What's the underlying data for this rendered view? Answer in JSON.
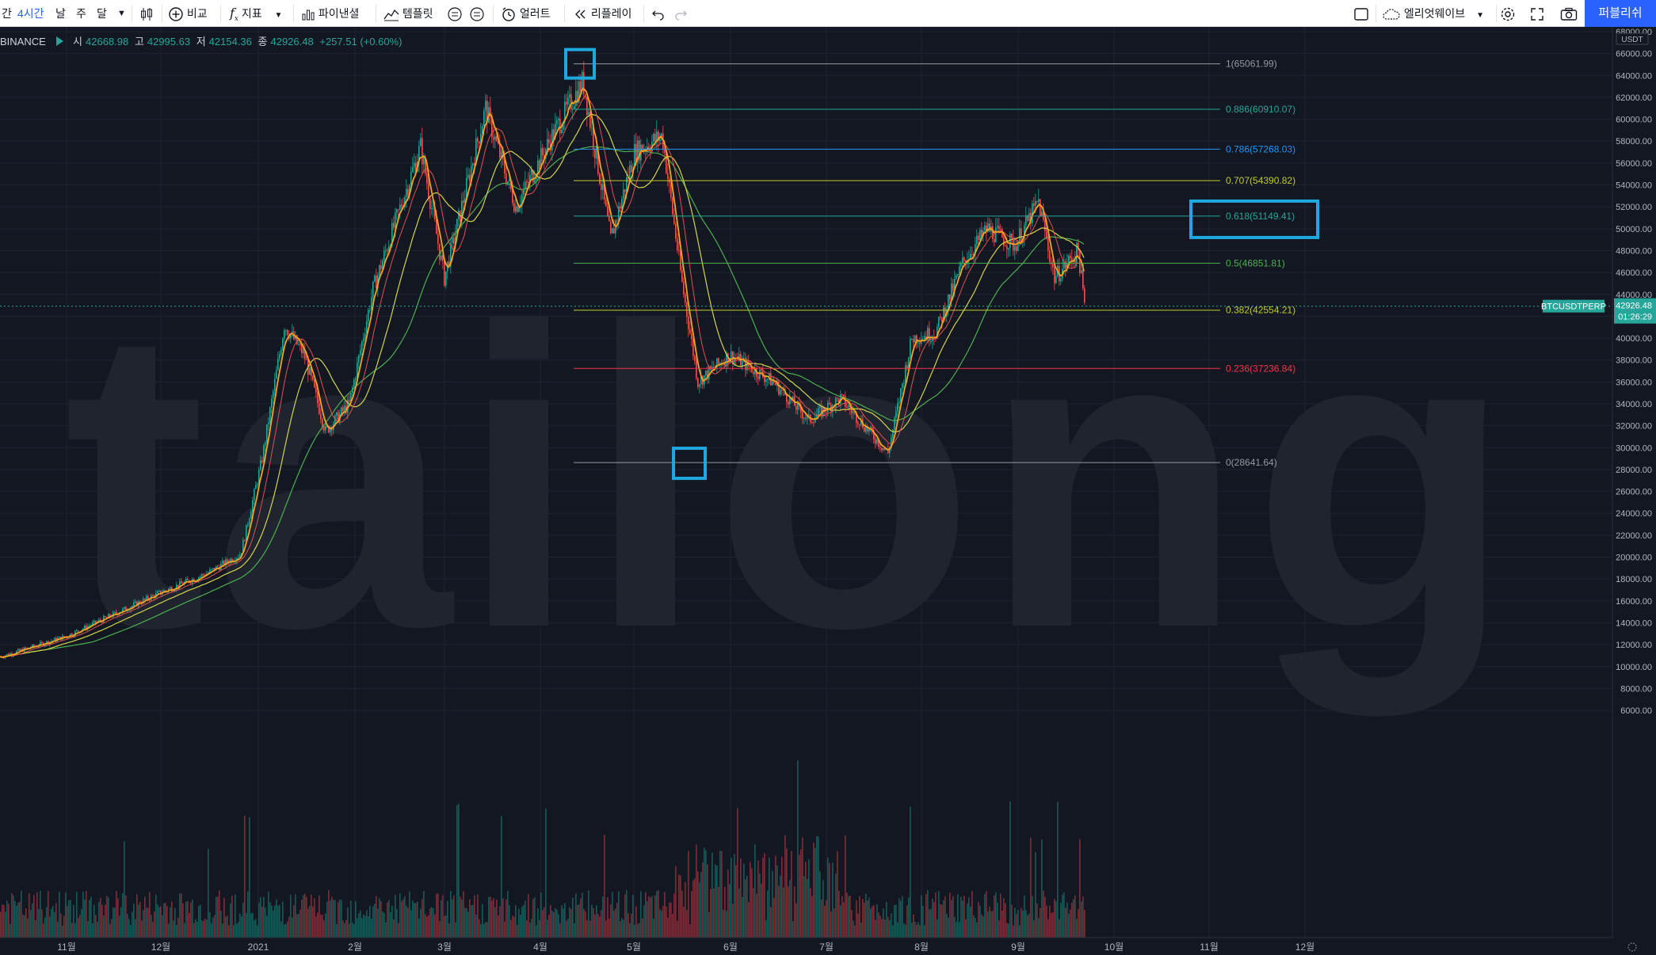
{
  "toolbar": {
    "interval_partial": "간",
    "interval_active": "4시간",
    "interval_day": "날",
    "interval_week": "주",
    "interval_month": "달",
    "compare": "비교",
    "indicators": "지표",
    "financials": "파이낸셜",
    "templates": "템플릿",
    "alert": "얼러트",
    "replay": "리플레이",
    "layout": "엘리엇웨이브",
    "publish": "퍼블리쉬"
  },
  "legend": {
    "exchange": "BINANCE",
    "open_label": "시",
    "open": "42668.98",
    "high_label": "고",
    "high": "42995.63",
    "low_label": "저",
    "low": "42154.36",
    "close_label": "종",
    "close": "42926.48",
    "change": "+257.51 (+0.60%)"
  },
  "watermark": "tailong",
  "price_axis": {
    "currency": "USDT",
    "ticks": [
      "68000.00",
      "66000.00",
      "64000.00",
      "62000.00",
      "60000.00",
      "58000.00",
      "56000.00",
      "54000.00",
      "52000.00",
      "50000.00",
      "48000.00",
      "46000.00",
      "44000.00",
      "42000.00",
      "40000.00",
      "38000.00",
      "36000.00",
      "34000.00",
      "32000.00",
      "30000.00",
      "28000.00",
      "26000.00",
      "24000.00",
      "22000.00",
      "20000.00",
      "18000.00",
      "16000.00",
      "14000.00",
      "12000.00",
      "10000.00",
      "8000.00",
      "6000.00"
    ],
    "symbol_tag": "BTCUSDTPERP",
    "last_price": "42926.48",
    "countdown": "01:26:29"
  },
  "time_axis": {
    "labels": [
      "11월",
      "12월",
      "2021",
      "2월",
      "3월",
      "4월",
      "5월",
      "6월",
      "7월",
      "8월",
      "9월",
      "10월",
      "11월",
      "12월"
    ]
  },
  "colors": {
    "up": "#26a69a",
    "down": "#ef5350",
    "highlight_box": "#1fa8e0",
    "ma_fast": "#f7a31c",
    "ma_mid": "#d4d44a",
    "ma_slow": "#4caf50"
  },
  "fib_levels": [
    {
      "label": "1(65061.99)",
      "price": 65061.99,
      "color": "#9598a1"
    },
    {
      "label": "0.886(60910.07)",
      "price": 60910.07,
      "color": "#26a69a"
    },
    {
      "label": "0.786(57268.03)",
      "price": 57268.03,
      "color": "#2196f3"
    },
    {
      "label": "0.707(54390.82)",
      "price": 54390.82,
      "color": "#c0ca33"
    },
    {
      "label": "0.618(51149.41)",
      "price": 51149.41,
      "color": "#26a69a"
    },
    {
      "label": "0.5(46851.81)",
      "price": 46851.81,
      "color": "#4caf50"
    },
    {
      "label": "0.382(42554.21)",
      "price": 42554.21,
      "color": "#c0ca33"
    },
    {
      "label": "0.236(37236.84)",
      "price": 37236.84,
      "color": "#f23645"
    },
    {
      "label": "0(28641.64)",
      "price": 28641.64,
      "color": "#9598a1"
    }
  ],
  "chart_data": {
    "type": "line",
    "series": [
      {
        "name": "BTCUSDTPERP",
        "x": [
          "2020-10-20",
          "2020-11-01",
          "2020-11-15",
          "2020-12-01",
          "2020-12-15",
          "2021-01-01",
          "2021-01-08",
          "2021-01-20",
          "2021-01-28",
          "2021-02-10",
          "2021-02-21",
          "2021-02-28",
          "2021-03-13",
          "2021-03-25",
          "2021-04-01",
          "2021-04-14",
          "2021-04-25",
          "2021-05-03",
          "2021-05-10",
          "2021-05-19",
          "2021-05-25",
          "2021-06-10",
          "2021-06-22",
          "2021-07-01",
          "2021-07-20",
          "2021-07-28",
          "2021-08-07",
          "2021-08-14",
          "2021-08-23",
          "2021-09-01",
          "2021-09-06",
          "2021-09-10",
          "2021-09-17",
          "2021-09-22"
        ],
        "close": [
          11500,
          13500,
          16000,
          18800,
          19000,
          29000,
          40500,
          32000,
          34000,
          45000,
          57500,
          45000,
          61000,
          52000,
          58500,
          63500,
          48500,
          57000,
          58000,
          36000,
          38500,
          36500,
          31500,
          34500,
          30000,
          40000,
          44000,
          47000,
          50000,
          48000,
          52500,
          45000,
          48000,
          42926.48
        ]
      }
    ],
    "ylim": [
      6000,
      68000
    ]
  }
}
